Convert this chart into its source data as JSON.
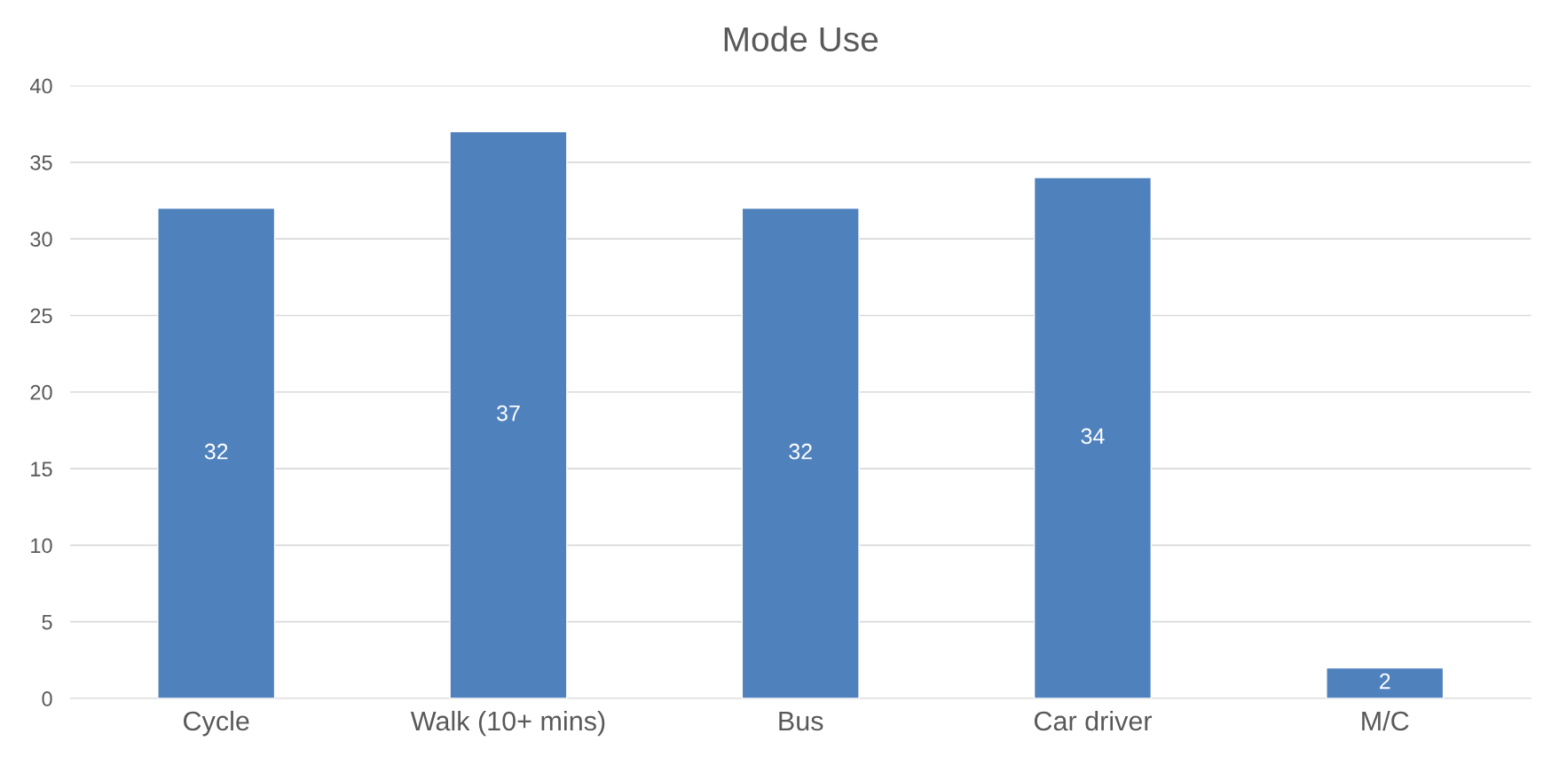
{
  "chart_data": {
    "type": "bar",
    "title": "Mode Use",
    "categories": [
      "Cycle",
      "Walk (10+ mins)",
      "Bus",
      "Car driver",
      "M/C"
    ],
    "values": [
      32,
      37,
      32,
      34,
      2
    ],
    "color": "#4f81bd",
    "ylim": [
      0,
      40
    ],
    "yticks": [
      0,
      5,
      10,
      15,
      20,
      25,
      30,
      35,
      40
    ],
    "grid": "y",
    "data_labels": true
  }
}
